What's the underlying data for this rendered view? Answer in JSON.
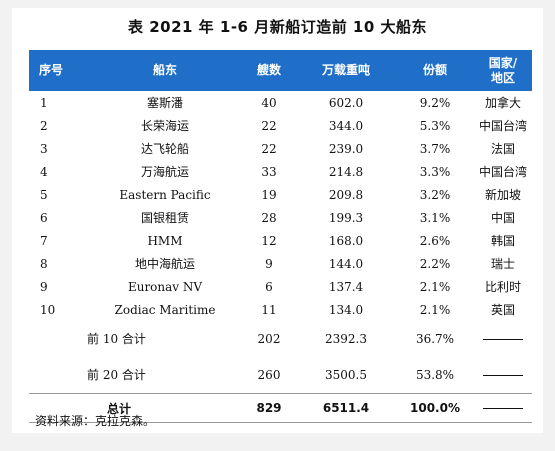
{
  "title": "表  2021 年 1-6 月新船订造前 10 大船东",
  "headers": {
    "rank": "序号",
    "owner": "船东",
    "ships": "艘数",
    "dwt": "万载重吨",
    "share": "份额",
    "country_l1": "国家/",
    "country_l2": "地区"
  },
  "rows": [
    {
      "rank": "1",
      "owner": "塞斯潘",
      "ships": "40",
      "dwt": "602.0",
      "share": "9.2%",
      "country": "加拿大"
    },
    {
      "rank": "2",
      "owner": "长荣海运",
      "ships": "22",
      "dwt": "344.0",
      "share": "5.3%",
      "country": "中国台湾"
    },
    {
      "rank": "3",
      "owner": "达飞轮船",
      "ships": "22",
      "dwt": "239.0",
      "share": "3.7%",
      "country": "法国"
    },
    {
      "rank": "4",
      "owner": "万海航运",
      "ships": "33",
      "dwt": "214.8",
      "share": "3.3%",
      "country": "中国台湾"
    },
    {
      "rank": "5",
      "owner": "Eastern Pacific",
      "ships": "19",
      "dwt": "209.8",
      "share": "3.2%",
      "country": "新加坡"
    },
    {
      "rank": "6",
      "owner": "国银租赁",
      "ships": "28",
      "dwt": "199.3",
      "share": "3.1%",
      "country": "中国"
    },
    {
      "rank": "7",
      "owner": "HMM",
      "ships": "12",
      "dwt": "168.0",
      "share": "2.6%",
      "country": "韩国"
    },
    {
      "rank": "8",
      "owner": "地中海航运",
      "ships": "9",
      "dwt": "144.0",
      "share": "2.2%",
      "country": "瑞士"
    },
    {
      "rank": "9",
      "owner": "Euronav NV",
      "ships": "6",
      "dwt": "137.4",
      "share": "2.1%",
      "country": "比利时"
    },
    {
      "rank": "10",
      "owner": "Zodiac Maritime",
      "ships": "11",
      "dwt": "134.0",
      "share": "2.1%",
      "country": "英国"
    }
  ],
  "top10": {
    "label": "前 10 合计",
    "ships": "202",
    "dwt": "2392.3",
    "share": "36.7%"
  },
  "top20": {
    "label": "前 20 合计",
    "ships": "260",
    "dwt": "3500.5",
    "share": "53.8%"
  },
  "total": {
    "label": "总计",
    "ships": "829",
    "dwt": "6511.4",
    "share": "100.0%"
  },
  "source": "资料来源：克拉克森。"
}
